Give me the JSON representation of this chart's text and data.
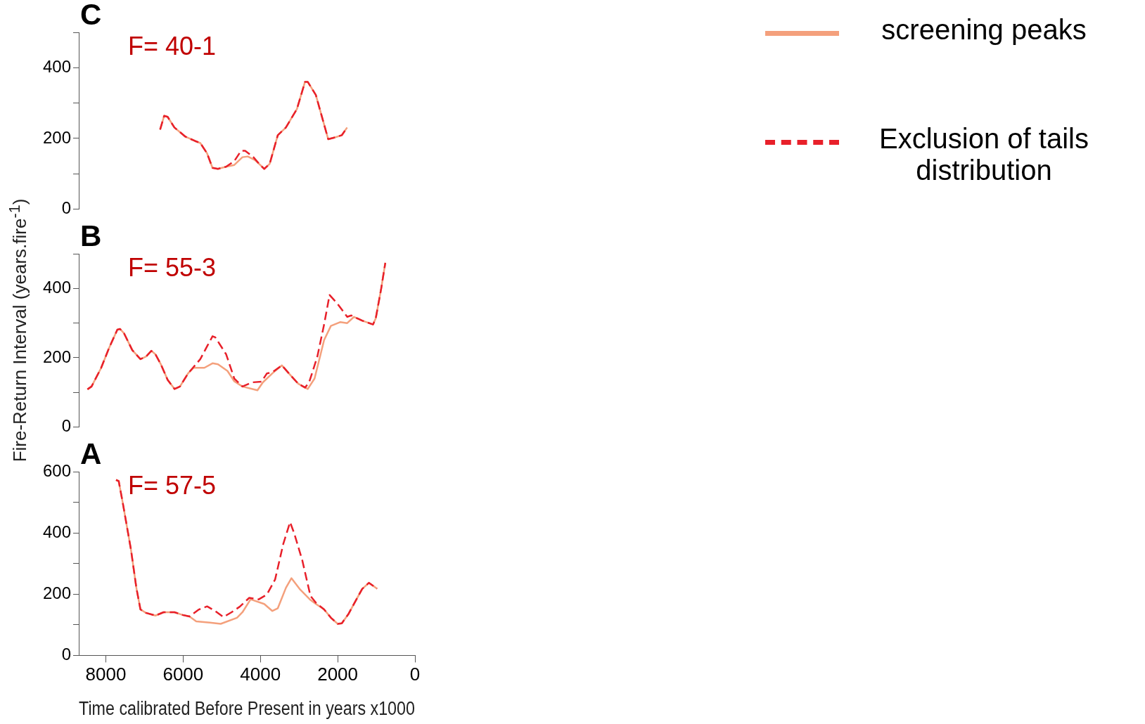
{
  "chart_data": [
    {
      "type": "line",
      "title": "C",
      "annotations": [
        "F= 40-1"
      ],
      "xlim": [
        8700,
        0
      ],
      "ylim": [
        0,
        500
      ],
      "yticks": [
        0,
        {
          "value": 100,
          "label": null
        },
        200,
        {
          "value": 300,
          "label": null
        },
        400,
        {
          "value": 500,
          "label": null
        }
      ],
      "tick_labels": "y",
      "grid": false,
      "marker": "none",
      "legend": "top right",
      "series": [
        {
          "name": "screening peaks",
          "color": "#f4a07c",
          "line_style": "solid",
          "x": [
            6595,
            6490,
            6400,
            6225,
            5940,
            5695,
            5555,
            5380,
            5240,
            5100,
            4890,
            4675,
            4465,
            4325,
            4145,
            4005,
            3900,
            3760,
            3550,
            3340,
            3055,
            2845,
            2775,
            2565,
            2350,
            2245,
            2070,
            1895,
            1755
          ],
          "values": [
            225,
            264,
            261,
            231,
            205,
            193,
            187,
            158,
            117,
            114,
            120,
            125,
            147,
            149,
            139,
            125,
            114,
            128,
            209,
            231,
            283,
            360,
            360,
            323,
            239,
            198,
            203,
            209,
            231
          ]
        },
        {
          "name": "Exclusion of tails distribution",
          "color": "#e8202a",
          "line_style": "dashed",
          "x": [
            6595,
            6490,
            6400,
            6225,
            5940,
            5695,
            5555,
            5380,
            5240,
            5100,
            4890,
            4675,
            4500,
            4395,
            4180,
            4005,
            3900,
            3760,
            3550,
            3340,
            3055,
            2845,
            2775,
            2565,
            2350,
            2245,
            2070,
            1895,
            1755
          ],
          "values": [
            225,
            264,
            261,
            231,
            205,
            193,
            187,
            158,
            117,
            114,
            120,
            136,
            165,
            165,
            147,
            125,
            114,
            128,
            209,
            231,
            283,
            360,
            360,
            323,
            239,
            198,
            203,
            209,
            231
          ]
        }
      ]
    },
    {
      "type": "line",
      "title": "B",
      "annotations": [
        "F= 55-3"
      ],
      "ylabel": "Fire-Return Interval (years.fire$^{-1}$)",
      "xlim": [
        8700,
        0
      ],
      "ylim": [
        0,
        500
      ],
      "yticks": [
        0,
        {
          "value": 100,
          "label": null
        },
        200,
        {
          "value": 300,
          "label": null
        },
        400,
        {
          "value": 500,
          "label": null
        }
      ],
      "tick_labels": "y",
      "grid": false,
      "marker": "none",
      "series": [
        {
          "color": "#f4a07c",
          "line_style": "solid",
          "x": [
            8476,
            8370,
            8124,
            7913,
            7702,
            7631,
            7526,
            7315,
            7104,
            6963,
            6822,
            6716,
            6575,
            6399,
            6223,
            6082,
            5871,
            5731,
            5450,
            5238,
            5097,
            4851,
            4675,
            4464,
            4076,
            3936,
            3690,
            3443,
            3232,
            3020,
            2844,
            2774,
            2598,
            2351,
            2175,
            1929,
            1753,
            1577,
            1366,
            1084,
            1014,
            873,
            767
          ],
          "values": [
            109,
            117,
            170,
            229,
            281,
            283,
            270,
            222,
            196,
            203,
            220,
            210,
            181,
            136,
            110,
            117,
            155,
            171,
            171,
            184,
            181,
            162,
            132,
            117,
            106,
            129,
            155,
            178,
            151,
            125,
            114,
            110,
            140,
            251,
            292,
            303,
            300,
            318,
            307,
            296,
            314,
            400,
            474
          ]
        },
        {
          "color": "#e8202a",
          "line_style": "dashed",
          "x": [
            8476,
            8370,
            8124,
            7913,
            7702,
            7631,
            7526,
            7315,
            7104,
            6963,
            6822,
            6716,
            6575,
            6399,
            6223,
            6082,
            5871,
            5731,
            5555,
            5379,
            5238,
            5168,
            4886,
            4675,
            4464,
            4218,
            3971,
            3830,
            3690,
            3443,
            3232,
            3020,
            2844,
            2739,
            2527,
            2351,
            2210,
            2000,
            1753,
            1647,
            1366,
            1084,
            1014,
            873,
            767
          ],
          "values": [
            109,
            117,
            170,
            229,
            281,
            283,
            270,
            222,
            196,
            203,
            220,
            210,
            181,
            136,
            110,
            117,
            155,
            173,
            196,
            233,
            262,
            259,
            210,
            140,
            117,
            129,
            131,
            155,
            158,
            178,
            151,
            125,
            114,
            129,
            203,
            296,
            381,
            355,
            318,
            322,
            307,
            296,
            314,
            400,
            474
          ]
        }
      ]
    },
    {
      "type": "line",
      "title": "A",
      "annotations": [
        "F= 57-5"
      ],
      "xlabel": "Time calibrated Before Present in years x1000",
      "xlim": [
        8700,
        0
      ],
      "xticks": [
        8000,
        6000,
        4000,
        2000,
        0
      ],
      "ylim": [
        0,
        600
      ],
      "yticks": [
        0,
        {
          "value": 100,
          "label": null
        },
        200,
        {
          "value": 300,
          "label": null
        },
        400,
        {
          "value": 500,
          "label": null
        },
        600
      ],
      "grid": false,
      "marker": "none",
      "series": [
        {
          "color": "#f4a07c",
          "line_style": "solid",
          "x": [
            7736,
            7666,
            7560,
            7350,
            7210,
            7104,
            6963,
            6716,
            6505,
            6223,
            6012,
            5836,
            5660,
            5308,
            5027,
            4605,
            4464,
            4253,
            3901,
            3690,
            3549,
            3338,
            3197,
            2985,
            2704,
            2563,
            2351,
            2175,
            1999,
            1893,
            1717,
            1506,
            1366,
            1190,
            979
          ],
          "values": [
            573,
            569,
            497,
            346,
            221,
            150,
            139,
            130,
            141,
            141,
            132,
            127,
            111,
            107,
            103,
            123,
            141,
            183,
            168,
            145,
            154,
            221,
            252,
            217,
            181,
            168,
            150,
            123,
            103,
            105,
            136,
            185,
            217,
            237,
            218
          ]
        },
        {
          "color": "#e8202a",
          "line_style": "dashed",
          "x": [
            7736,
            7666,
            7560,
            7350,
            7210,
            7104,
            6963,
            6716,
            6505,
            6223,
            6012,
            5836,
            5590,
            5379,
            5168,
            4957,
            4746,
            4535,
            4288,
            4041,
            3830,
            3619,
            3408,
            3232,
            3126,
            2915,
            2704,
            2563,
            2351,
            2175,
            1999,
            1893,
            1717,
            1506,
            1366,
            1190,
            979
          ],
          "values": [
            573,
            569,
            497,
            346,
            221,
            150,
            139,
            130,
            141,
            141,
            132,
            127,
            150,
            160,
            145,
            125,
            141,
            159,
            188,
            183,
            199,
            248,
            364,
            435,
            399,
            310,
            194,
            172,
            150,
            123,
            103,
            105,
            136,
            185,
            217,
            237,
            218
          ]
        }
      ]
    }
  ]
}
